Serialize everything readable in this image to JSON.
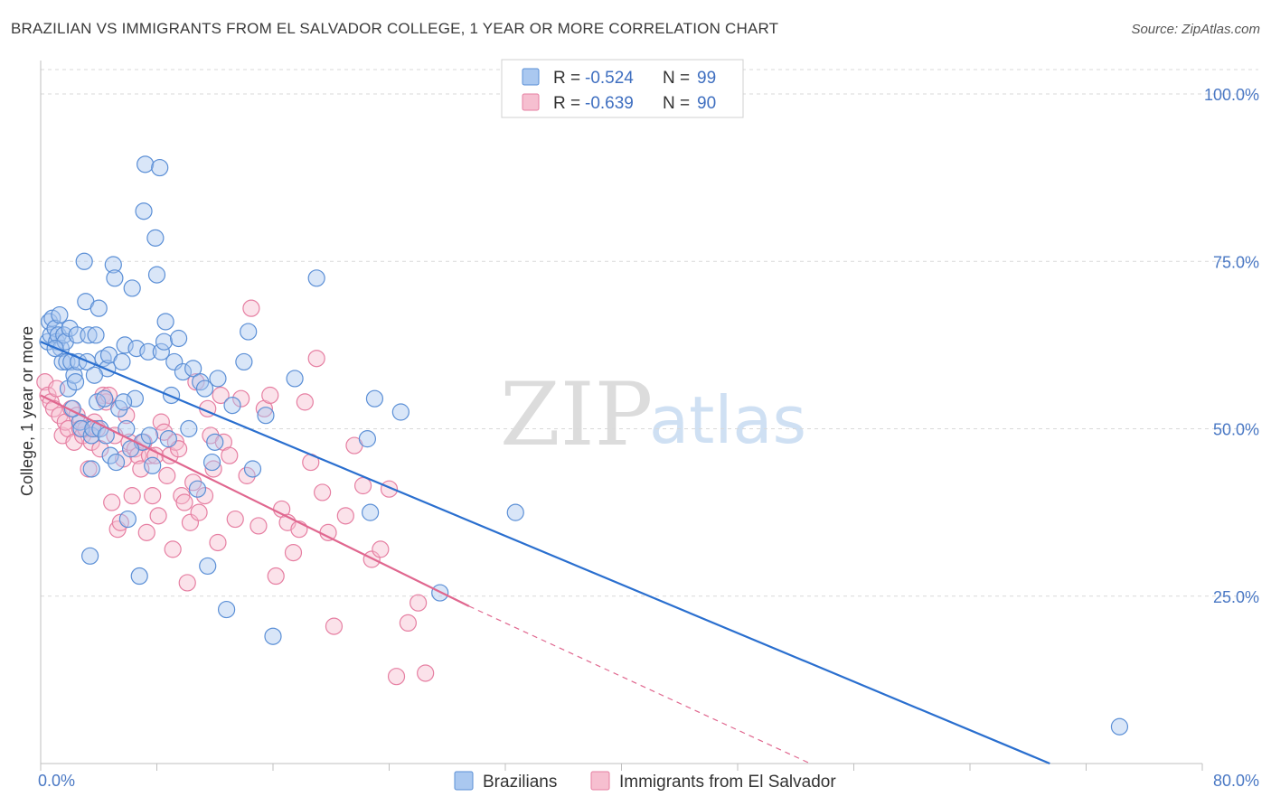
{
  "title": "BRAZILIAN VS IMMIGRANTS FROM EL SALVADOR COLLEGE, 1 YEAR OR MORE CORRELATION CHART",
  "source": "Source: ZipAtlas.com",
  "watermark": {
    "zip": "ZIP",
    "atlas": "atlas"
  },
  "colors": {
    "blue_fill": "#aac8f0",
    "blue_stroke": "#5b8fd6",
    "blue_line": "#2a6fcf",
    "pink_fill": "#f6bfd0",
    "pink_stroke": "#e67fa2",
    "pink_line": "#e0678f",
    "grid": "#d9d9d9",
    "tick_label": "#4a78c4"
  },
  "legend": {
    "r_label": "R =",
    "n_label": "N =",
    "rows": [
      {
        "series": "Brazilians",
        "r": "-0.524",
        "n": "99"
      },
      {
        "series": "Immigrants from El Salvador",
        "r": "-0.639",
        "n": "90"
      }
    ]
  },
  "chart_data": {
    "type": "scatter",
    "title": "BRAZILIAN VS IMMIGRANTS FROM EL SALVADOR COLLEGE, 1 YEAR OR MORE CORRELATION CHART",
    "xlabel": "",
    "ylabel": "College, 1 year or more",
    "xlim": [
      0,
      80
    ],
    "ylim": [
      0,
      105
    ],
    "x_tick_labels": [
      "0.0%",
      "80.0%"
    ],
    "y_ticks": [
      25,
      50,
      75,
      100
    ],
    "y_tick_labels": [
      "25.0%",
      "50.0%",
      "75.0%",
      "100.0%"
    ],
    "grid": true,
    "legend_position": "top-center",
    "series": [
      {
        "name": "Brazilians",
        "trend": {
          "x": [
            0,
            69.5
          ],
          "y": [
            63.0,
            0
          ]
        },
        "points": [
          [
            0.5,
            63
          ],
          [
            0.6,
            66
          ],
          [
            0.7,
            64
          ],
          [
            0.8,
            66.5
          ],
          [
            1.0,
            65
          ],
          [
            1.1,
            63
          ],
          [
            1.2,
            64
          ],
          [
            1.3,
            67
          ],
          [
            1.4,
            62
          ],
          [
            1.5,
            60
          ],
          [
            1.6,
            64
          ],
          [
            1.7,
            63
          ],
          [
            1.8,
            60
          ],
          [
            1.9,
            56
          ],
          [
            2.0,
            65
          ],
          [
            2.1,
            60
          ],
          [
            2.3,
            58
          ],
          [
            2.4,
            57
          ],
          [
            2.5,
            64
          ],
          [
            2.6,
            60
          ],
          [
            2.7,
            51
          ],
          [
            2.8,
            50
          ],
          [
            3.0,
            75
          ],
          [
            3.1,
            69
          ],
          [
            3.2,
            60
          ],
          [
            3.3,
            64
          ],
          [
            3.4,
            31
          ],
          [
            3.5,
            49
          ],
          [
            3.6,
            50
          ],
          [
            3.8,
            64
          ],
          [
            3.9,
            54
          ],
          [
            4.0,
            68
          ],
          [
            4.1,
            50
          ],
          [
            4.3,
            60.5
          ],
          [
            4.4,
            54.5
          ],
          [
            4.6,
            59
          ],
          [
            4.7,
            61
          ],
          [
            4.8,
            46
          ],
          [
            5.0,
            74.5
          ],
          [
            5.1,
            72.5
          ],
          [
            5.2,
            45
          ],
          [
            5.4,
            53
          ],
          [
            5.6,
            60
          ],
          [
            5.8,
            62.5
          ],
          [
            5.9,
            50
          ],
          [
            6.0,
            36.5
          ],
          [
            6.3,
            71
          ],
          [
            6.5,
            54.5
          ],
          [
            6.6,
            62
          ],
          [
            6.8,
            28
          ],
          [
            7.0,
            48
          ],
          [
            7.1,
            82.5
          ],
          [
            7.2,
            89.5
          ],
          [
            7.4,
            61.5
          ],
          [
            7.5,
            49
          ],
          [
            7.7,
            44.5
          ],
          [
            7.9,
            78.5
          ],
          [
            8.0,
            73
          ],
          [
            8.2,
            89
          ],
          [
            8.3,
            61.5
          ],
          [
            8.5,
            63
          ],
          [
            8.6,
            66
          ],
          [
            8.8,
            48.5
          ],
          [
            9.2,
            60
          ],
          [
            9.5,
            63.5
          ],
          [
            9.8,
            58.5
          ],
          [
            10.2,
            50
          ],
          [
            10.5,
            59
          ],
          [
            10.8,
            41
          ],
          [
            11.0,
            57
          ],
          [
            11.3,
            56
          ],
          [
            11.5,
            29.5
          ],
          [
            11.8,
            45
          ],
          [
            12.2,
            57.5
          ],
          [
            12.8,
            23
          ],
          [
            13.2,
            53.5
          ],
          [
            14.0,
            60
          ],
          [
            14.3,
            64.5
          ],
          [
            14.6,
            44
          ],
          [
            15.5,
            52
          ],
          [
            16.0,
            19
          ],
          [
            17.5,
            57.5
          ],
          [
            19.0,
            72.5
          ],
          [
            22.5,
            48.5
          ],
          [
            22.7,
            37.5
          ],
          [
            23.0,
            54.5
          ],
          [
            24.8,
            52.5
          ],
          [
            27.5,
            25.5
          ],
          [
            32.7,
            37.5
          ],
          [
            74.3,
            5.5
          ],
          [
            5.7,
            54
          ],
          [
            3.7,
            58
          ],
          [
            6.2,
            47
          ],
          [
            9.0,
            55
          ],
          [
            2.2,
            53
          ],
          [
            4.5,
            49
          ],
          [
            12.0,
            48
          ],
          [
            1.0,
            62
          ],
          [
            3.5,
            44
          ]
        ]
      },
      {
        "name": "Immigrants from El Salvador",
        "trend": {
          "x": [
            0,
            29.5
          ],
          "y": [
            55.0,
            23.5
          ]
        },
        "trend_dashed": {
          "x": [
            29.5,
            53
          ],
          "y": [
            23.5,
            0
          ]
        },
        "points": [
          [
            0.3,
            57
          ],
          [
            0.5,
            55
          ],
          [
            0.7,
            54
          ],
          [
            0.9,
            53
          ],
          [
            1.1,
            56
          ],
          [
            1.3,
            52
          ],
          [
            1.5,
            49
          ],
          [
            1.7,
            51
          ],
          [
            1.9,
            50
          ],
          [
            2.1,
            53
          ],
          [
            2.3,
            48
          ],
          [
            2.5,
            52
          ],
          [
            2.7,
            50
          ],
          [
            2.9,
            49
          ],
          [
            3.1,
            50
          ],
          [
            3.3,
            44
          ],
          [
            3.5,
            48
          ],
          [
            3.7,
            51
          ],
          [
            3.9,
            50
          ],
          [
            4.1,
            47
          ],
          [
            4.3,
            55
          ],
          [
            4.5,
            54
          ],
          [
            4.7,
            55
          ],
          [
            4.9,
            39
          ],
          [
            5.1,
            49
          ],
          [
            5.3,
            35
          ],
          [
            5.5,
            36
          ],
          [
            5.7,
            45.5
          ],
          [
            5.9,
            52
          ],
          [
            6.1,
            48
          ],
          [
            6.3,
            40
          ],
          [
            6.5,
            47
          ],
          [
            6.7,
            46
          ],
          [
            6.9,
            44
          ],
          [
            7.1,
            48
          ],
          [
            7.3,
            34.5
          ],
          [
            7.5,
            46
          ],
          [
            7.7,
            40
          ],
          [
            7.9,
            46
          ],
          [
            8.1,
            37
          ],
          [
            8.3,
            51
          ],
          [
            8.5,
            49.5
          ],
          [
            8.7,
            43
          ],
          [
            8.9,
            46
          ],
          [
            9.1,
            32
          ],
          [
            9.3,
            48
          ],
          [
            9.5,
            47
          ],
          [
            9.7,
            40
          ],
          [
            9.9,
            39
          ],
          [
            10.1,
            27
          ],
          [
            10.3,
            36
          ],
          [
            10.5,
            42
          ],
          [
            10.7,
            57
          ],
          [
            10.9,
            37.5
          ],
          [
            11.3,
            40
          ],
          [
            11.5,
            53
          ],
          [
            11.7,
            49
          ],
          [
            11.9,
            44
          ],
          [
            12.2,
            33
          ],
          [
            12.4,
            55
          ],
          [
            12.6,
            48
          ],
          [
            13.0,
            46
          ],
          [
            13.4,
            36.5
          ],
          [
            13.8,
            54.5
          ],
          [
            14.2,
            43
          ],
          [
            14.5,
            68
          ],
          [
            15.0,
            35.5
          ],
          [
            15.4,
            53
          ],
          [
            15.8,
            55
          ],
          [
            16.2,
            28
          ],
          [
            16.6,
            38
          ],
          [
            17.0,
            36
          ],
          [
            17.4,
            31.5
          ],
          [
            17.8,
            35
          ],
          [
            18.2,
            54
          ],
          [
            18.6,
            45
          ],
          [
            19.0,
            60.5
          ],
          [
            19.4,
            40.5
          ],
          [
            19.8,
            34.5
          ],
          [
            20.2,
            20.5
          ],
          [
            21.0,
            37
          ],
          [
            21.6,
            47.5
          ],
          [
            22.2,
            41.5
          ],
          [
            22.8,
            30.5
          ],
          [
            23.4,
            32
          ],
          [
            24.0,
            41
          ],
          [
            24.5,
            13
          ],
          [
            25.3,
            21
          ],
          [
            26.0,
            24
          ],
          [
            26.5,
            13.5
          ]
        ]
      }
    ]
  }
}
